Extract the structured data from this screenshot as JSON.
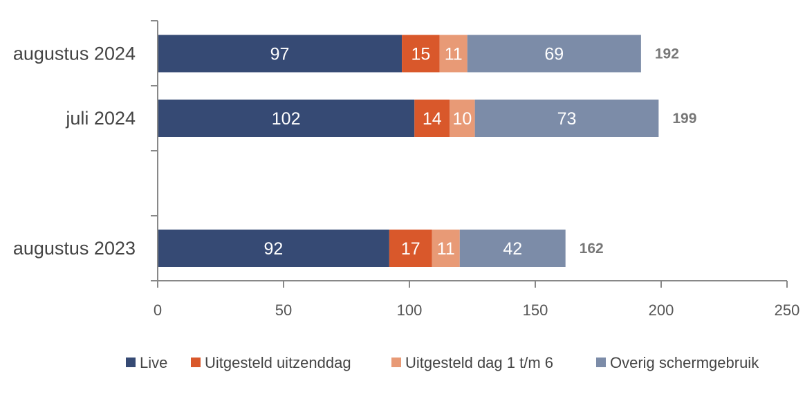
{
  "chart_data": {
    "type": "bar",
    "orientation": "horizontal",
    "stacked": true,
    "categories": [
      "augustus 2024",
      "juli 2024",
      "augustus 2023"
    ],
    "series": [
      {
        "name": "Live",
        "values": [
          97,
          102,
          92
        ],
        "color": "#364a74"
      },
      {
        "name": "Uitgesteld uitzenddag",
        "values": [
          15,
          14,
          17
        ],
        "color": "#d9582b"
      },
      {
        "name": "Uitgesteld dag 1 t/m 6",
        "values": [
          11,
          10,
          11
        ],
        "color": "#e89a76"
      },
      {
        "name": "Overig schermgebruik",
        "values": [
          69,
          73,
          42
        ],
        "color": "#7c8ca8"
      }
    ],
    "totals": [
      192,
      199,
      162
    ],
    "xlim": [
      0,
      250
    ],
    "xticks": [
      "0",
      "50",
      "100",
      "150",
      "200",
      "250"
    ],
    "grid": false,
    "legend": "bottom"
  }
}
